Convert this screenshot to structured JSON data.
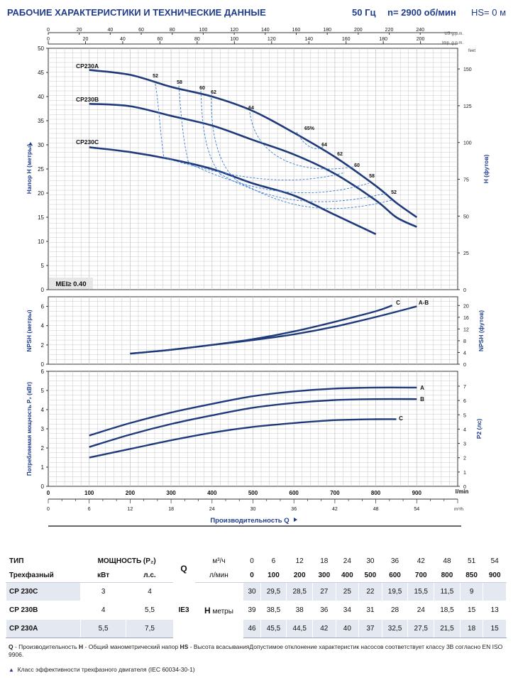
{
  "header": {
    "title": "РАБОЧИЕ ХАРАКТЕРИСТИКИ И ТЕХНИЧЕСКИЕ ДАННЫЕ",
    "frequency": "50 Гц",
    "speed": "n= 2900 об/мин",
    "hs": "HS= 0 м"
  },
  "colors": {
    "curve": "#1f3a7a",
    "efficiency": "#3a7bd5",
    "grid": "#c8c8c8",
    "text": "#1f3d8c"
  },
  "chart_data": [
    {
      "type": "line",
      "panel": "head",
      "xlabel": "Производительность Q",
      "ylabel": "Напор H (метры)",
      "ylabel_right": "H (футов)",
      "ylim": [
        0,
        50
      ],
      "yticks": [
        0,
        5,
        10,
        15,
        20,
        25,
        30,
        35,
        40,
        45,
        50
      ],
      "yticks_right": [
        0,
        25,
        50,
        75,
        100,
        125,
        150
      ],
      "right_unit": "feet",
      "x_lmin_ticks": [
        0,
        100,
        200,
        300,
        400,
        500,
        600,
        700,
        800,
        900
      ],
      "x_lmin_unit": "l/min",
      "x_m3h_ticks": [
        0,
        6,
        12,
        18,
        24,
        30,
        36,
        42,
        48,
        54
      ],
      "x_m3h_unit": "m³/h",
      "x_usgpm_ticks": [
        0,
        20,
        40,
        60,
        80,
        100,
        120,
        140,
        160,
        180,
        200,
        220,
        240
      ],
      "x_usgpm_unit": "US g.p.m.",
      "x_impgpm_ticks": [
        0,
        20,
        40,
        60,
        80,
        100,
        120,
        140,
        160,
        180,
        200
      ],
      "x_impgpm_unit": "Imp. g.p.m.",
      "series": [
        {
          "name": "CP230A",
          "x": [
            100,
            200,
            300,
            400,
            500,
            600,
            700,
            800,
            850,
            900
          ],
          "y": [
            45.5,
            44.5,
            42,
            40,
            37,
            32.5,
            27.5,
            21.5,
            18,
            15
          ]
        },
        {
          "name": "CP230B",
          "x": [
            100,
            200,
            300,
            400,
            500,
            600,
            700,
            800,
            850,
            900
          ],
          "y": [
            38.5,
            38,
            36,
            34,
            31,
            28,
            24,
            18.5,
            15,
            13
          ]
        },
        {
          "name": "CP230C",
          "x": [
            100,
            200,
            300,
            400,
            500,
            600,
            700,
            800
          ],
          "y": [
            29.5,
            28.5,
            27,
            25,
            22,
            19.5,
            15.5,
            11.5
          ]
        }
      ],
      "efficiency_labels": [
        "52",
        "58",
        "60",
        "62",
        "64",
        "65%",
        "64",
        "62",
        "60",
        "58",
        "52"
      ],
      "mei_label": "MEI≥ 0.40"
    },
    {
      "type": "line",
      "panel": "npsh",
      "ylabel": "NPSH (метры)",
      "ylabel_right": "NPSH (футов)",
      "ylim": [
        0,
        7
      ],
      "yticks": [
        0,
        2,
        4,
        6
      ],
      "yticks_right": [
        0,
        4,
        8,
        12,
        16,
        20
      ],
      "series": [
        {
          "name": "C",
          "x": [
            200,
            300,
            400,
            500,
            600,
            700,
            800,
            840
          ],
          "y": [
            1.1,
            1.5,
            2.0,
            2.6,
            3.4,
            4.4,
            5.5,
            6.1
          ]
        },
        {
          "name": "A-B",
          "x": [
            200,
            300,
            400,
            500,
            600,
            700,
            800,
            900
          ],
          "y": [
            1.1,
            1.5,
            2.0,
            2.5,
            3.1,
            3.9,
            4.9,
            6.0
          ]
        }
      ]
    },
    {
      "type": "line",
      "panel": "power",
      "ylabel": "Потребляемая мощность P₂ (кВт)",
      "ylabel_right": "P2 (лс)",
      "ylim": [
        0,
        6
      ],
      "yticks": [
        0,
        1,
        2,
        3,
        4,
        5,
        6
      ],
      "yticks_right": [
        0,
        1,
        2,
        3,
        4,
        5,
        6,
        7
      ],
      "series": [
        {
          "name": "A",
          "x": [
            100,
            200,
            300,
            400,
            500,
            600,
            700,
            800,
            900
          ],
          "y": [
            2.65,
            3.3,
            3.85,
            4.3,
            4.7,
            4.95,
            5.1,
            5.15,
            5.15
          ]
        },
        {
          "name": "B",
          "x": [
            100,
            200,
            300,
            400,
            500,
            600,
            700,
            800,
            900
          ],
          "y": [
            2.05,
            2.7,
            3.25,
            3.7,
            4.1,
            4.35,
            4.5,
            4.55,
            4.55
          ]
        },
        {
          "name": "C",
          "x": [
            100,
            200,
            300,
            400,
            500,
            600,
            700,
            800,
            850
          ],
          "y": [
            1.5,
            1.95,
            2.4,
            2.8,
            3.1,
            3.3,
            3.45,
            3.5,
            3.5
          ]
        }
      ]
    }
  ],
  "axis_text": {
    "xlabel": "Производительность Q",
    "lmin_unit": "l/min",
    "m3h_unit": "m³/h",
    "usgpm_unit": "US g.p.m.",
    "impgpm_unit": "Imp. g.p.m.",
    "feet_unit": "feet"
  },
  "table": {
    "col_type": "ТИП",
    "col_power": "МОЩНОСТЬ (P₂)",
    "row_three_phase": "Трехфазный",
    "unit_kw": "кВт",
    "unit_hp": "л.с.",
    "q_symbol": "Q",
    "q_unit_m3h": "м³/ч",
    "q_unit_lmin": "л/мин",
    "ie3": "IE3",
    "h_symbol": "H",
    "h_unit": "метры",
    "q_m3h": [
      "0",
      "6",
      "12",
      "18",
      "24",
      "30",
      "36",
      "42",
      "48",
      "51",
      "54"
    ],
    "q_lmin": [
      "0",
      "100",
      "200",
      "300",
      "400",
      "500",
      "600",
      "700",
      "800",
      "850",
      "900"
    ],
    "rows": [
      {
        "model": "CP 230C",
        "kw": "3",
        "hp": "4",
        "h": [
          "30",
          "29,5",
          "28,5",
          "27",
          "25",
          "22",
          "19,5",
          "15,5",
          "11,5",
          "9",
          ""
        ]
      },
      {
        "model": "CP 230B",
        "kw": "4",
        "hp": "5,5",
        "h": [
          "39",
          "38,5",
          "38",
          "36",
          "34",
          "31",
          "28",
          "24",
          "18,5",
          "15",
          "13"
        ]
      },
      {
        "model": "CP 230A",
        "kw": "5,5",
        "hp": "7,5",
        "h": [
          "46",
          "45,5",
          "44,5",
          "42",
          "40",
          "37",
          "32,5",
          "27,5",
          "21,5",
          "18",
          "15"
        ]
      }
    ]
  },
  "notes": {
    "q_key": "Q",
    "q_text": " - Производительность  ",
    "h_key": "H",
    "h_text": " - Общий манометрический напор  ",
    "hs_key": "HS",
    "hs_text": " - Высота всасыванияДопустимое отклонение характеристик насосов соответствует классу 3B согласно EN ISO 9906.",
    "ie_triangle": "▲",
    "ie_text": "Класс эффективности трехфазного двигателя (IEC 60034-30-1)"
  }
}
